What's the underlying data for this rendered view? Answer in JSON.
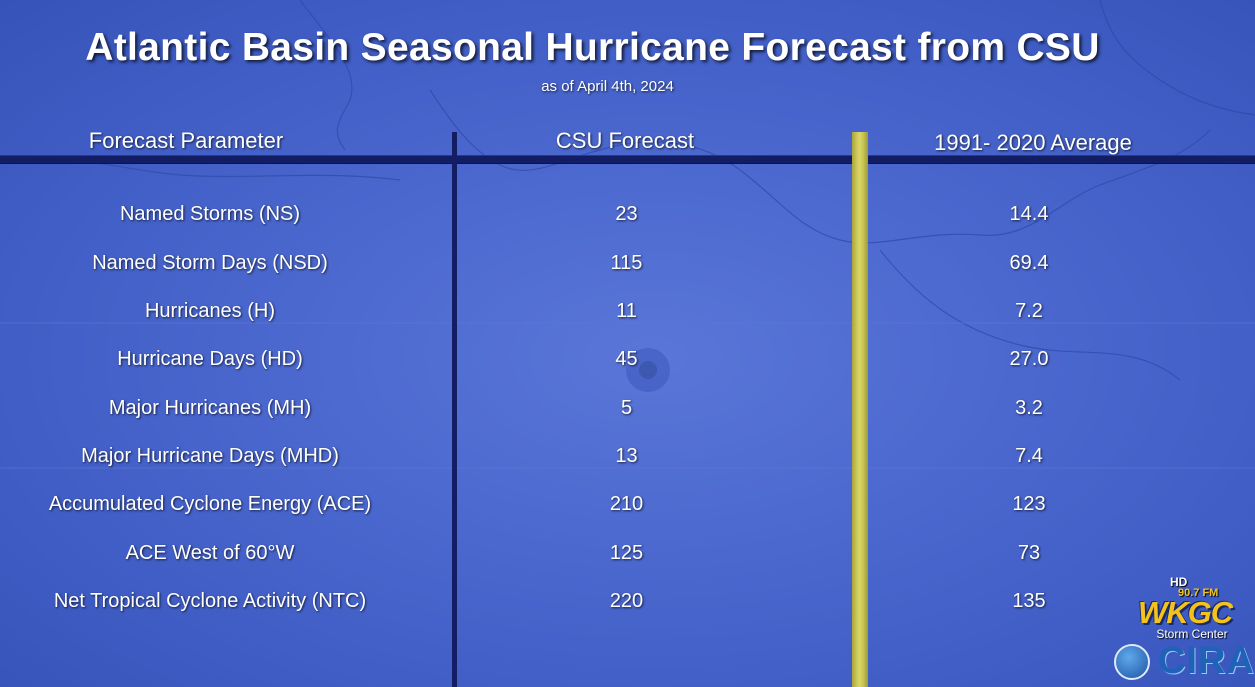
{
  "title": "Atlantic Basin Seasonal Hurricane Forecast from CSU",
  "subtitle": "as of April 4th, 2024",
  "headers": {
    "parameter": "Forecast Parameter",
    "csu": "CSU Forecast",
    "average": "1991- 2020 Average"
  },
  "rows": [
    {
      "parameter": "Named Storms (NS)",
      "csu": "23",
      "average": "14.4"
    },
    {
      "parameter": "Named Storm Days (NSD)",
      "csu": "115",
      "average": "69.4"
    },
    {
      "parameter": "Hurricanes (H)",
      "csu": "11",
      "average": "7.2"
    },
    {
      "parameter": "Hurricane Days (HD)",
      "csu": "45",
      "average": "27.0"
    },
    {
      "parameter": "Major Hurricanes (MH)",
      "csu": "5",
      "average": "3.2"
    },
    {
      "parameter": "Major Hurricane Days (MHD)",
      "csu": "13",
      "average": "7.4"
    },
    {
      "parameter": "Accumulated Cyclone Energy (ACE)",
      "csu": "210",
      "average": "123"
    },
    {
      "parameter": "ACE West of 60°W",
      "csu": "125",
      "average": "73"
    },
    {
      "parameter": "Net Tropical Cyclone Activity (NTC)",
      "csu": "220",
      "average": "135"
    }
  ],
  "logo": {
    "hd": "HD",
    "frequency": "90.7 FM",
    "station": "WKGC",
    "tagline": "Storm Center",
    "partner": "CIRA",
    "partner_icon": "noaa-logo-icon"
  },
  "colors": {
    "background": "#4b68cf",
    "divider_navy": "#121d63",
    "divider_yellow": "#dcd866",
    "station_gold": "#f4c21c"
  }
}
